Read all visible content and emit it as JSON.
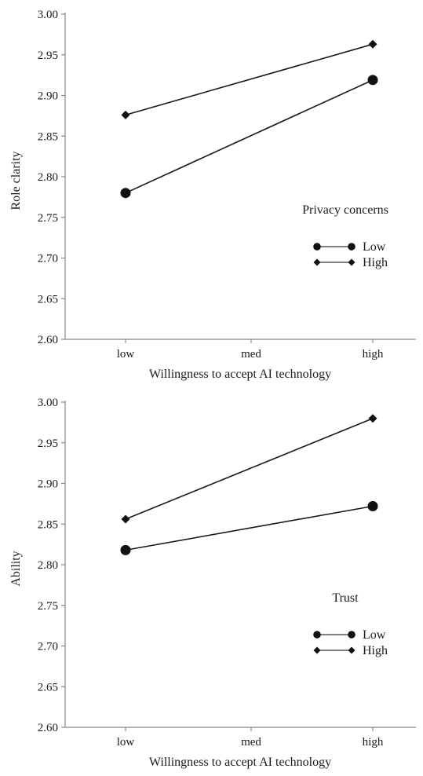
{
  "chart_data": [
    {
      "type": "line",
      "title": "",
      "xlabel": "Willingness to accept AI technology",
      "ylabel": "Role clarity",
      "categories": [
        "low",
        "med",
        "high"
      ],
      "ylim": [
        2.6,
        3.0
      ],
      "yticks": [
        "2.60",
        "2.65",
        "2.70",
        "2.75",
        "2.80",
        "2.85",
        "2.90",
        "2.95",
        "3.00"
      ],
      "grid": false,
      "legend": {
        "title": "Privacy concerns",
        "placement": "right",
        "entries": [
          "Low",
          "High"
        ]
      },
      "series": [
        {
          "name": "Low",
          "marker": "circle",
          "x": [
            "low",
            "high"
          ],
          "values": [
            2.78,
            2.919
          ]
        },
        {
          "name": "High",
          "marker": "diamond",
          "x": [
            "low",
            "high"
          ],
          "values": [
            2.876,
            2.963
          ]
        }
      ]
    },
    {
      "type": "line",
      "title": "",
      "xlabel": "Willingness to accept AI technology",
      "ylabel": "Ability",
      "categories": [
        "low",
        "med",
        "high"
      ],
      "ylim": [
        2.6,
        3.0
      ],
      "yticks": [
        "2.60",
        "2.65",
        "2.70",
        "2.75",
        "2.80",
        "2.85",
        "2.90",
        "2.95",
        "3.00"
      ],
      "grid": false,
      "legend": {
        "title": "Trust",
        "placement": "right",
        "entries": [
          "Low",
          "High"
        ]
      },
      "series": [
        {
          "name": "Low",
          "marker": "circle",
          "x": [
            "low",
            "high"
          ],
          "values": [
            2.818,
            2.872
          ]
        },
        {
          "name": "High",
          "marker": "diamond",
          "x": [
            "low",
            "high"
          ],
          "values": [
            2.856,
            2.98
          ]
        }
      ]
    }
  ],
  "colors": {
    "axis": "#888888",
    "line": "#1a1a1a",
    "legend_line": "#555555",
    "marker": "#111111"
  }
}
